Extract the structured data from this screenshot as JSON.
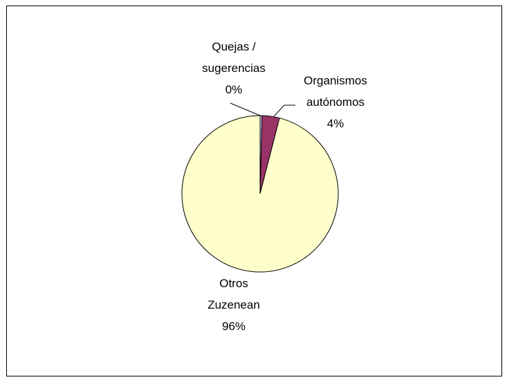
{
  "chart_data": {
    "type": "pie",
    "categories": [
      "Quejas / sugerencias",
      "Organismos autónomos",
      "Otros Zuzenean"
    ],
    "values": [
      0.4,
      3.6,
      96
    ],
    "value_labels": [
      "0%",
      "4%",
      "96%"
    ],
    "colors": [
      "#ccccff",
      "#993366",
      "#ffffcc"
    ]
  }
}
